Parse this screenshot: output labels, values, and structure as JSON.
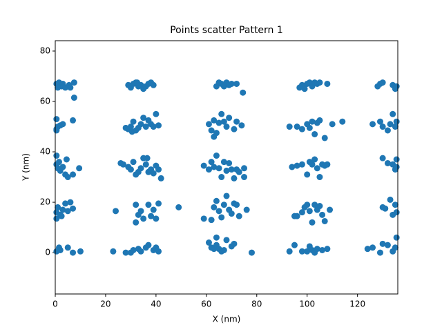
{
  "chart_data": {
    "type": "scatter",
    "title": "Points scatter Pattern 1",
    "x_label": "X (nm)",
    "y_label": "Y (nm)",
    "color": "#1f77b4",
    "xlim": [
      0,
      136
    ],
    "ylim": [
      -16.4,
      84.1
    ],
    "xticks": [
      0,
      20,
      40,
      60,
      80,
      100,
      120
    ],
    "yticks": [
      0,
      20,
      40,
      60,
      80
    ],
    "x": [
      0.5,
      1.5,
      2.5,
      3,
      4,
      5.5,
      6,
      7.5,
      7.5,
      1,
      29,
      30,
      31,
      32,
      33,
      34,
      35,
      36,
      37,
      38,
      39,
      32.5,
      64,
      65,
      66,
      67,
      68,
      69,
      70,
      72,
      74.5,
      97,
      98,
      99,
      100,
      101,
      102,
      103,
      104,
      105,
      108,
      128,
      129,
      130,
      134,
      135,
      135.5,
      0.5,
      0.5,
      1,
      2,
      3,
      0.5,
      7,
      28,
      29,
      30,
      31,
      32,
      33,
      34,
      35,
      36,
      37,
      38,
      39,
      40,
      41,
      30.5,
      61,
      62,
      63,
      64,
      65,
      66,
      67,
      68,
      69,
      71,
      72,
      74,
      63,
      93,
      96,
      98,
      100,
      101,
      102,
      103,
      104,
      105,
      107,
      110,
      114,
      126,
      129,
      130,
      132,
      133,
      134,
      135,
      135.5,
      0.5,
      0.5,
      1,
      2,
      3,
      4,
      4.5,
      5,
      7,
      9.5,
      1.5,
      26,
      27,
      29,
      30,
      31,
      32,
      33,
      34,
      35,
      36,
      37,
      38,
      39,
      40,
      41,
      42,
      36.5,
      59,
      61,
      62,
      63,
      64,
      65,
      66,
      67,
      68,
      69,
      70,
      71,
      72,
      73,
      75,
      75,
      94,
      96,
      98,
      100,
      101,
      102,
      103,
      104,
      105,
      106,
      107,
      108,
      130,
      132,
      134,
      135,
      135.5,
      135.5,
      0.5,
      0.5,
      1,
      2,
      3,
      4,
      5,
      6,
      7,
      2.5,
      24,
      32,
      32,
      33,
      34,
      35,
      37,
      38,
      39,
      40,
      41,
      49,
      59,
      62,
      63,
      64,
      65,
      66,
      67,
      68,
      69,
      70,
      71,
      72,
      73,
      76,
      95,
      96,
      98,
      99,
      100,
      101,
      102,
      103,
      104,
      105,
      106,
      107,
      109,
      130,
      131,
      133,
      134,
      135,
      135.5,
      0.5,
      1.5,
      2,
      5,
      7,
      10,
      23,
      28,
      30,
      31,
      33,
      34,
      36,
      37,
      39,
      40,
      41,
      61,
      62,
      63,
      64,
      65,
      66,
      67,
      68,
      70,
      71,
      64,
      78,
      93,
      95,
      98,
      100,
      101,
      102,
      103,
      104,
      106,
      108,
      124,
      126,
      129,
      130,
      132,
      134,
      135,
      135.5
    ],
    "y": [
      67,
      67.5,
      66,
      67,
      65.5,
      66.5,
      65.5,
      67.5,
      61.5,
      65.5,
      66.5,
      65.5,
      67,
      67.5,
      66,
      66.5,
      65,
      66,
      67,
      67.5,
      66.5,
      67.5,
      66,
      67.5,
      67,
      66,
      67.5,
      66.5,
      67,
      67,
      63.5,
      65.5,
      66.5,
      65,
      67,
      67.5,
      66,
      67.5,
      67,
      67.5,
      67,
      66,
      67,
      67.5,
      66.5,
      65,
      66,
      53,
      49,
      50,
      50.5,
      51,
      48.5,
      52.5,
      49.5,
      49,
      50,
      52,
      48.5,
      49.5,
      51,
      53.5,
      50,
      52.5,
      51,
      50,
      55,
      50.5,
      48,
      51,
      48.5,
      46,
      47.5,
      51.5,
      55,
      52,
      50,
      53.5,
      49,
      52,
      50.5,
      52.5,
      50,
      50,
      49,
      51,
      49.5,
      52,
      47,
      51.5,
      52.5,
      45.5,
      51,
      52,
      51,
      52,
      50,
      48.5,
      51,
      55,
      50,
      52,
      38.5,
      35,
      33.5,
      32.5,
      34,
      31,
      37,
      30,
      31,
      33.5,
      36,
      35.5,
      35,
      34,
      33,
      36,
      31,
      32,
      33.5,
      37.5,
      35,
      32,
      33,
      31.5,
      34.5,
      33,
      29.5,
      37.5,
      34.5,
      33,
      36,
      34,
      38.5,
      33.5,
      30,
      36,
      32.5,
      35.5,
      33,
      29.5,
      33,
      32,
      33.5,
      30,
      34,
      34.5,
      35,
      31,
      36,
      35,
      37,
      33.5,
      30,
      35,
      34.5,
      35,
      37.5,
      35.5,
      35,
      33,
      37,
      34,
      16,
      13.5,
      18,
      15,
      17,
      19.5,
      16.5,
      20,
      17.5,
      14.5,
      16.5,
      19,
      12,
      15,
      16.5,
      13.5,
      19,
      14.5,
      17,
      13.5,
      19.5,
      18,
      13.5,
      13,
      18,
      20.5,
      16.5,
      14,
      19,
      22.5,
      17,
      15.5,
      19.5,
      19,
      14.5,
      17,
      14.5,
      14.5,
      16,
      18,
      19,
      16.5,
      12,
      19,
      17,
      18.5,
      15,
      12.5,
      17,
      18,
      17.5,
      21,
      15,
      19,
      16,
      0.5,
      2,
      1,
      2,
      0,
      0.5,
      0.5,
      0,
      0,
      1,
      1.5,
      0.5,
      2,
      3,
      1,
      2,
      0.5,
      4,
      2,
      1.5,
      3,
      1.5,
      0.5,
      1,
      5,
      2.5,
      3.5,
      6,
      0,
      0.5,
      3,
      0.5,
      0.5,
      2.5,
      1,
      0,
      1.5,
      1,
      1.5,
      1.5,
      2,
      0,
      3.5,
      3,
      0.5,
      2,
      6
    ]
  }
}
